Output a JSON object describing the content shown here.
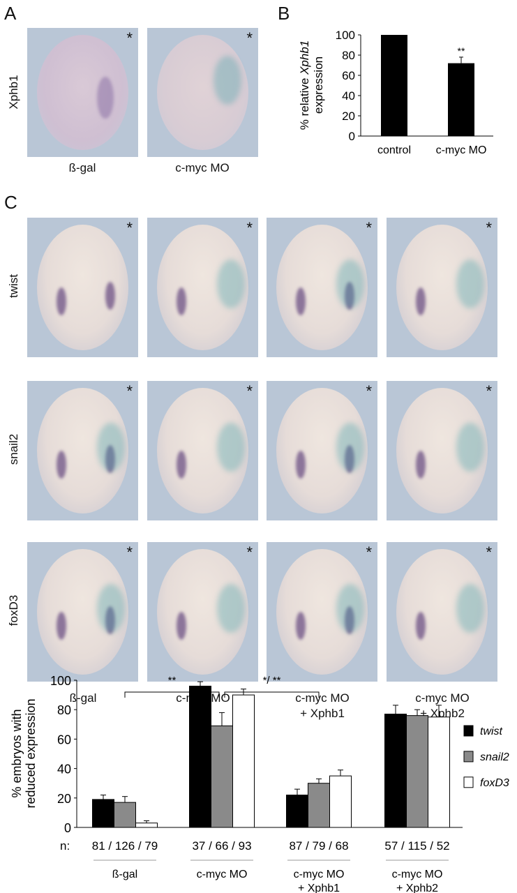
{
  "panel_labels": {
    "a": "A",
    "b": "B",
    "c": "C"
  },
  "panel_a": {
    "row_label": "Xphb1",
    "columns": [
      "ß-gal",
      "c-myc MO"
    ],
    "asterisk": "*"
  },
  "panel_c": {
    "rows": [
      "twist",
      "snail2",
      "foxD3"
    ],
    "columns": [
      {
        "line1": "ß-gal",
        "line2": ""
      },
      {
        "line1": "c-myc MO",
        "line2": ""
      },
      {
        "line1": "c-myc MO",
        "line2": "+ Xphb1"
      },
      {
        "line1": "c-myc MO",
        "line2": "+ Xphb2"
      }
    ],
    "asterisk": "*"
  },
  "chart_data": [
    {
      "type": "bar",
      "title": "",
      "ylabel": "% relative Xphb1 expression",
      "ylabel_parts": {
        "pre": "% relative ",
        "italic": "Xphb1",
        "post": "expression"
      },
      "categories": [
        "control",
        "c-myc MO"
      ],
      "values": [
        100,
        72
      ],
      "errors": [
        0,
        6
      ],
      "annotations": [
        "",
        "**"
      ],
      "ylim": [
        0,
        100
      ],
      "yticks": [
        0,
        20,
        40,
        60,
        80,
        100
      ],
      "color": "#000000"
    },
    {
      "type": "bar",
      "ylabel": "% embryos with reduced expression",
      "ylabel_lines": [
        "% embryos with",
        "reduced expression"
      ],
      "categories": [
        {
          "line1": "ß-gal",
          "line2": ""
        },
        {
          "line1": "c-myc MO",
          "line2": ""
        },
        {
          "line1": "c-myc MO",
          "line2": "+ Xphb1"
        },
        {
          "line1": "c-myc MO",
          "line2": "+ Xphb2"
        }
      ],
      "n_label": "n:",
      "n_values": [
        "81 / 126 / 79",
        "37 / 66 / 93",
        "87 / 79 / 68",
        "57 / 115 / 52"
      ],
      "series": [
        {
          "name": "twist",
          "color": "#000000",
          "values": [
            19,
            96,
            22,
            77
          ],
          "errors": [
            3,
            3,
            4,
            6
          ]
        },
        {
          "name": "snail2",
          "color": "#8a8a8a",
          "values": [
            17,
            69,
            30,
            76
          ],
          "errors": [
            4,
            9,
            3,
            4
          ]
        },
        {
          "name": "foxD3",
          "color": "#ffffff",
          "values": [
            3,
            90,
            35,
            75
          ],
          "errors": [
            1.5,
            4,
            4,
            8
          ]
        }
      ],
      "significance": [
        {
          "from": 0,
          "to": 1,
          "label": "**"
        },
        {
          "from": 1,
          "to": 2,
          "label": "*/ **"
        }
      ],
      "ylim": [
        0,
        100
      ],
      "yticks": [
        0,
        20,
        40,
        60,
        80,
        100
      ],
      "legend_position": "right"
    }
  ]
}
